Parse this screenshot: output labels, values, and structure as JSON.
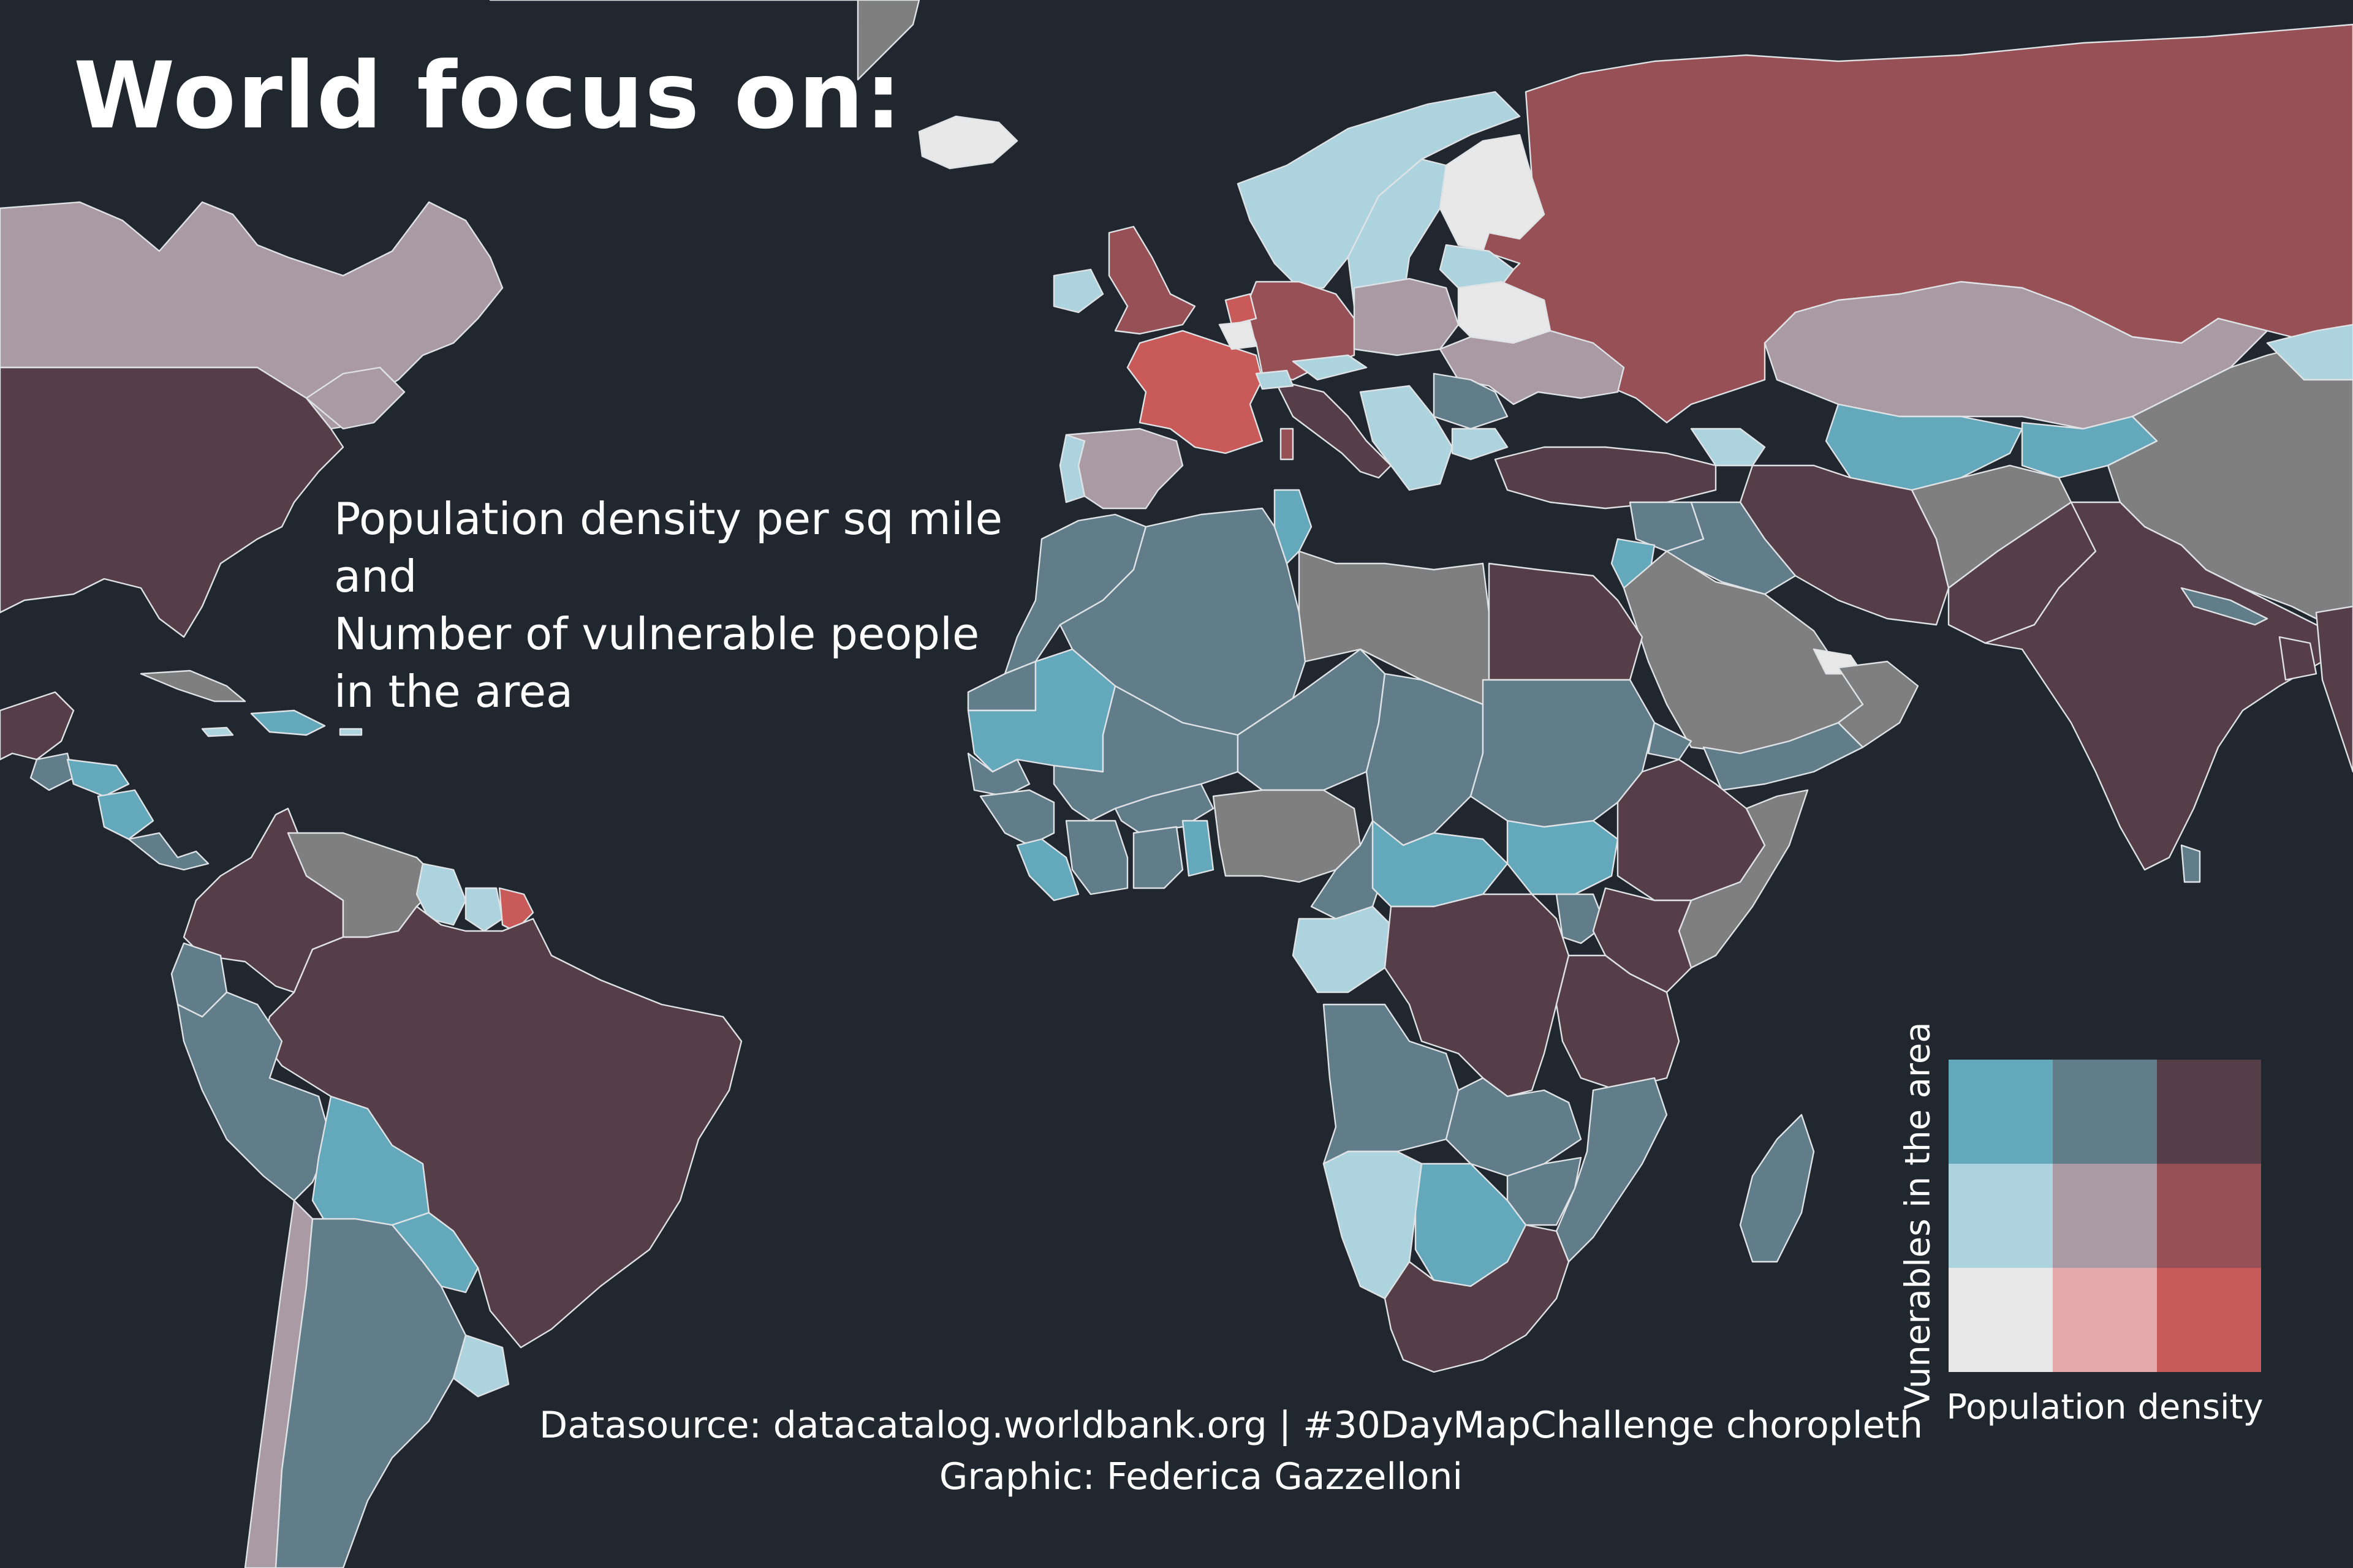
{
  "title": "World focus on:",
  "subtitle": {
    "line1": "Population density per sq mile",
    "line2": "and",
    "line3": "Number of vulnerable people",
    "line4": "in the area"
  },
  "source": {
    "line1": "Datasource: datacatalog.worldbank.org | #30DayMapChallenge choropleth",
    "line2": "Graphic: Federica Gazzelloni"
  },
  "legend": {
    "x_label": "Population density",
    "y_label": "Vunerables in the area",
    "rows_top_to_bottom": [
      [
        "#64a8bc",
        "#617d8a",
        "#563e48"
      ],
      [
        "#add4de",
        "#aa9aa3",
        "#975055"
      ],
      [
        "#e8e8e8",
        "#e4a9aa",
        "#c85a5a"
      ]
    ]
  },
  "colors": {
    "background": "#20272e",
    "no_data": "#7f7f7f",
    "border": "#dfe3e6"
  }
}
